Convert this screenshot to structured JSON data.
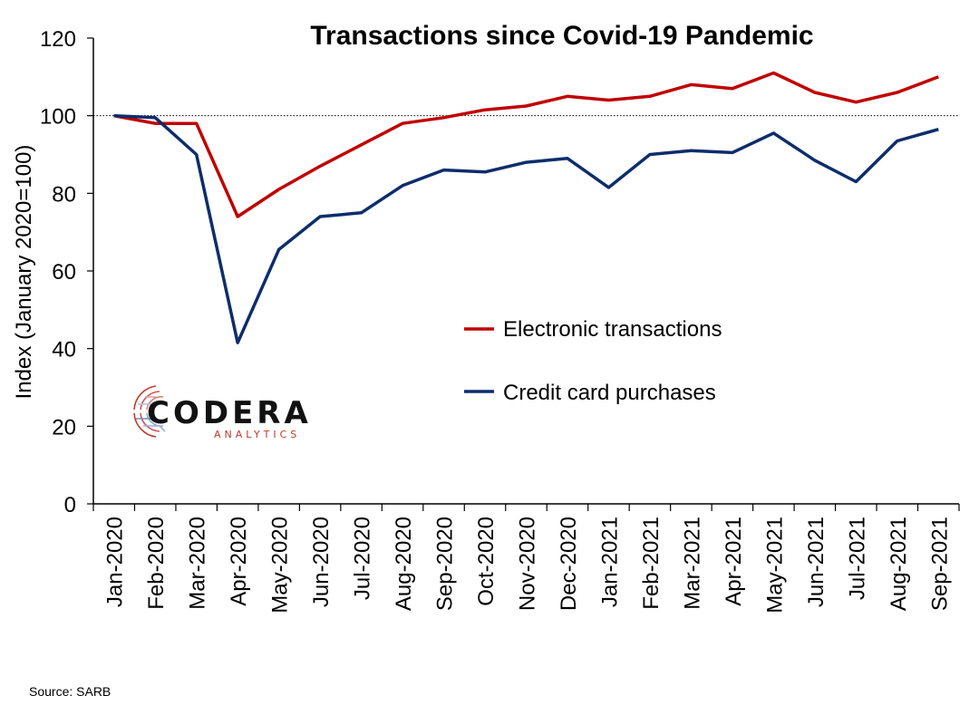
{
  "chart_data": {
    "type": "line",
    "title": "Transactions since Covid-19 Pandemic",
    "ylabel": "Index (January 2020=100)",
    "xlabel": "",
    "ylim": [
      0,
      120
    ],
    "yticks": [
      0,
      20,
      40,
      60,
      80,
      100,
      120
    ],
    "reference_line": 100,
    "grid": false,
    "legend_position": "center-right",
    "categories": [
      "Jan-2020",
      "Feb-2020",
      "Mar-2020",
      "Apr-2020",
      "May-2020",
      "Jun-2020",
      "Jul-2020",
      "Aug-2020",
      "Sep-2020",
      "Oct-2020",
      "Nov-2020",
      "Dec-2020",
      "Jan-2021",
      "Feb-2021",
      "Mar-2021",
      "Apr-2021",
      "May-2021",
      "Jun-2021",
      "Jul-2021",
      "Aug-2021",
      "Sep-2021"
    ],
    "series": [
      {
        "name": "Electronic transactions",
        "color": "#c00000",
        "values": [
          100,
          98,
          98,
          74,
          81,
          87,
          92.5,
          98,
          99.5,
          101.5,
          102.5,
          105,
          104,
          105,
          108,
          107,
          111,
          106,
          103.5,
          106,
          110
        ]
      },
      {
        "name": "Credit card purchases",
        "color": "#0d2d6b",
        "values": [
          100,
          99.5,
          90,
          41.5,
          65.5,
          74,
          75,
          82,
          86,
          85.5,
          88,
          89,
          81.5,
          90,
          91,
          90.5,
          95.5,
          88.5,
          83,
          93.5,
          96.5
        ]
      }
    ]
  },
  "logo": {
    "word": "CODERA",
    "sub": "ANALYTICS"
  },
  "source": "Source: SARB"
}
